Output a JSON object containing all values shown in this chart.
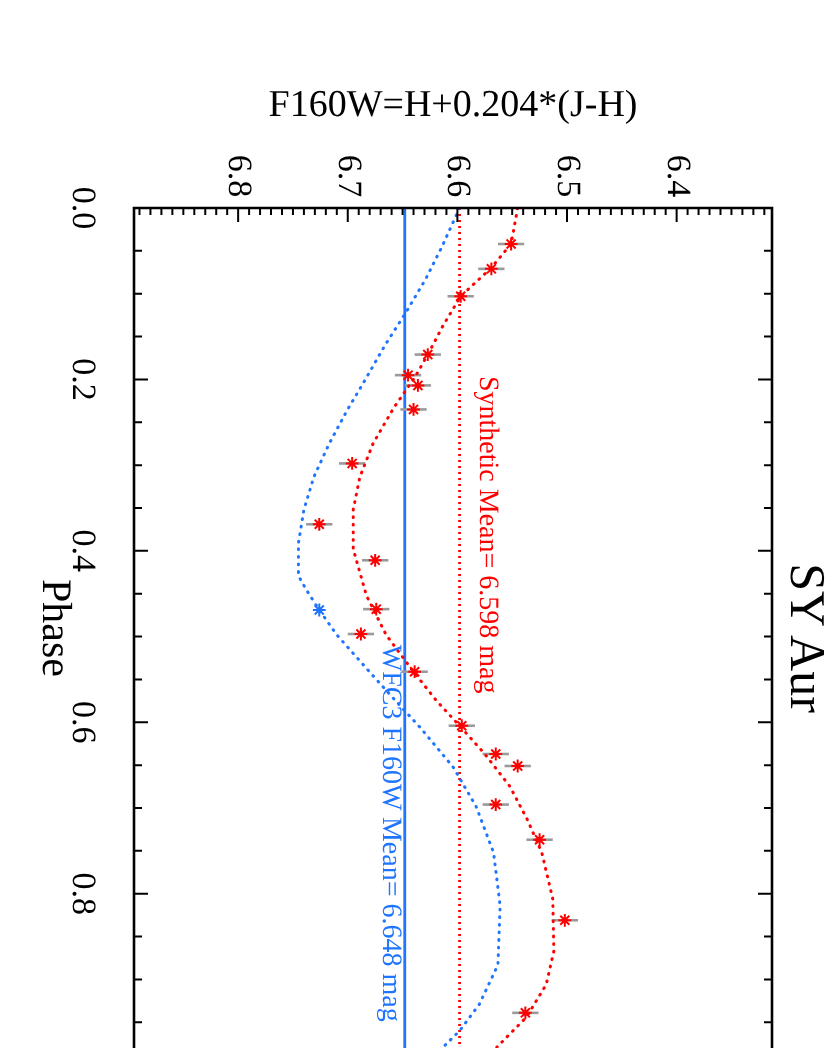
{
  "chart_data": {
    "type": "scatter",
    "title": "SY Aur",
    "xlabel": "F160W=H+0.204*(J-H)",
    "ylabel": "Phase",
    "xlim": [
      6.895,
      6.313
    ],
    "xticks": [
      {
        "value": 6.89,
        "label": null
      },
      {
        "value": 6.88,
        "label": null
      },
      {
        "value": 6.87,
        "label": null
      },
      {
        "value": 6.86,
        "label": null
      },
      {
        "value": 6.85,
        "label": null
      },
      {
        "value": 6.84,
        "label": null
      },
      {
        "value": 6.83,
        "label": null
      },
      {
        "value": 6.82,
        "label": null
      },
      {
        "value": 6.81,
        "label": null
      },
      6.8,
      {
        "value": 6.79,
        "label": null
      },
      {
        "value": 6.78,
        "label": null
      },
      {
        "value": 6.77,
        "label": null
      },
      {
        "value": 6.76,
        "label": null
      },
      {
        "value": 6.75,
        "label": null
      },
      {
        "value": 6.74,
        "label": null
      },
      {
        "value": 6.73,
        "label": null
      },
      {
        "value": 6.72,
        "label": null
      },
      {
        "value": 6.71,
        "label": null
      },
      6.7,
      {
        "value": 6.69,
        "label": null
      },
      {
        "value": 6.68,
        "label": null
      },
      {
        "value": 6.67,
        "label": null
      },
      {
        "value": 6.66,
        "label": null
      },
      {
        "value": 6.65,
        "label": null
      },
      {
        "value": 6.64,
        "label": null
      },
      {
        "value": 6.63,
        "label": null
      },
      {
        "value": 6.62,
        "label": null
      },
      {
        "value": 6.61,
        "label": null
      },
      6.6,
      {
        "value": 6.59,
        "label": null
      },
      {
        "value": 6.58,
        "label": null
      },
      {
        "value": 6.57,
        "label": null
      },
      {
        "value": 6.56,
        "label": null
      },
      {
        "value": 6.55,
        "label": null
      },
      {
        "value": 6.54,
        "label": null
      },
      {
        "value": 6.53,
        "label": null
      },
      {
        "value": 6.52,
        "label": null
      },
      {
        "value": 6.51,
        "label": null
      },
      6.5,
      {
        "value": 6.49,
        "label": null
      },
      {
        "value": 6.48,
        "label": null
      },
      {
        "value": 6.47,
        "label": null
      },
      {
        "value": 6.46,
        "label": null
      },
      {
        "value": 6.45,
        "label": null
      },
      {
        "value": 6.44,
        "label": null
      },
      {
        "value": 6.43,
        "label": null
      },
      {
        "value": 6.42,
        "label": null
      },
      {
        "value": 6.41,
        "label": null
      },
      6.4,
      {
        "value": 6.39,
        "label": null
      },
      {
        "value": 6.38,
        "label": null
      },
      {
        "value": 6.37,
        "label": null
      },
      {
        "value": 6.36,
        "label": null
      },
      {
        "value": 6.35,
        "label": null
      },
      {
        "value": 6.34,
        "label": null
      },
      {
        "value": 6.33,
        "label": null
      },
      {
        "value": 6.32,
        "label": null
      }
    ],
    "ylim": [
      0.98,
      0
    ],
    "yticks": [
      {
        "value": 0,
        "label": "0.0"
      },
      {
        "value": 0.05,
        "label": null
      },
      {
        "value": 0.1,
        "label": null
      },
      {
        "value": 0.15,
        "label": null
      },
      0.2,
      {
        "value": 0.25,
        "label": null
      },
      {
        "value": 0.3,
        "label": null
      },
      {
        "value": 0.35,
        "label": null
      },
      0.4,
      {
        "value": 0.45,
        "label": null
      },
      {
        "value": 0.5,
        "label": null
      },
      {
        "value": 0.55,
        "label": null
      },
      0.6,
      {
        "value": 0.65,
        "label": null
      },
      {
        "value": 0.7,
        "label": null
      },
      {
        "value": 0.75,
        "label": null
      },
      0.8,
      {
        "value": 0.85,
        "label": null
      },
      {
        "value": 0.9,
        "label": null
      },
      {
        "value": 0.95,
        "label": null
      }
    ],
    "series": [
      {
        "type": "line",
        "color": "#ff0000",
        "line_style": "dotted",
        "x": [
          6.545,
          6.551,
          6.57,
          6.597,
          6.613,
          6.627,
          6.639,
          6.658,
          6.677,
          6.689,
          6.695,
          6.695,
          6.683,
          6.665,
          6.64,
          6.619,
          6.598,
          6.575,
          6.552,
          6.536,
          6.523,
          6.513,
          6.512,
          6.519,
          6.537,
          6.564
        ],
        "values": [
          0,
          0.042,
          0.071,
          0.103,
          0.137,
          0.171,
          0.198,
          0.233,
          0.275,
          0.314,
          0.352,
          0.398,
          0.452,
          0.498,
          0.541,
          0.575,
          0.604,
          0.637,
          0.675,
          0.714,
          0.752,
          0.806,
          0.867,
          0.906,
          0.944,
          0.979
        ]
      },
      {
        "type": "line",
        "color": "#1f75fe",
        "line_style": "dotted",
        "x": [
          6.598,
          6.614,
          6.629,
          6.647,
          6.666,
          6.683,
          6.701,
          6.717,
          6.731,
          6.74,
          6.745,
          6.745,
          6.738,
          6.726,
          6.71,
          6.683,
          6.662,
          6.634,
          6.604,
          6.583,
          6.567,
          6.561,
          6.563,
          6.58,
          6.598,
          6.613
        ],
        "values": [
          0,
          0.045,
          0.083,
          0.122,
          0.16,
          0.198,
          0.237,
          0.275,
          0.314,
          0.352,
          0.391,
          0.429,
          0.445,
          0.469,
          0.498,
          0.537,
          0.567,
          0.606,
          0.652,
          0.698,
          0.752,
          0.814,
          0.883,
          0.929,
          0.96,
          0.979
        ]
      },
      {
        "type": "scatter",
        "color": "#ff0000",
        "marker": "cross",
        "x": [
          6.551,
          6.569,
          6.597,
          6.627,
          6.645,
          6.636,
          6.64,
          6.696,
          6.726,
          6.675,
          6.674,
          6.688,
          6.639,
          6.596,
          6.565,
          6.545,
          6.565,
          6.525,
          6.502,
          6.538
        ],
        "values": [
          0.042,
          0.071,
          0.103,
          0.171,
          0.195,
          0.207,
          0.235,
          0.298,
          0.369,
          0.411,
          0.468,
          0.497,
          0.541,
          0.604,
          0.637,
          0.651,
          0.696,
          0.737,
          0.831,
          0.939
        ],
        "xerrors": [
          0.012,
          0.012,
          0.012,
          0.012,
          0.012,
          0.012,
          0.012,
          0.012,
          0.012,
          0.012,
          0.012,
          0.012,
          0.012,
          0.012,
          0.012,
          0.012,
          0.012,
          0.012,
          0.012,
          0.012
        ]
      },
      {
        "type": "scatter",
        "color": "#1f75fe",
        "marker": "cross",
        "x": [
          6.726
        ],
        "values": [
          0.469
        ]
      }
    ],
    "ref_lines": [
      {
        "axis": "x",
        "value": 6.598,
        "label": "Synthetic Mean= 6.598 mag",
        "color": "#ff0000",
        "line_style": "dotted"
      },
      {
        "axis": "x",
        "value": 6.648,
        "label": "WFC3 F160W Mean= 6.648 mag",
        "color": "#1f75fe",
        "line_style": "solid"
      }
    ]
  }
}
